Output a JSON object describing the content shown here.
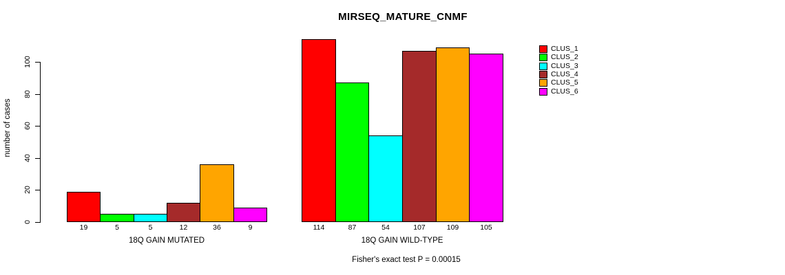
{
  "chart_data": {
    "type": "bar",
    "title": "MIRSEQ_MATURE_CNMF",
    "ylabel": "number of cases",
    "ylim": [
      0,
      100
    ],
    "yticks": [
      0,
      20,
      40,
      60,
      80,
      100
    ],
    "grid": false,
    "legend_position": "right",
    "clusters": [
      {
        "name": "CLUS_1",
        "color": "#FF0000"
      },
      {
        "name": "CLUS_2",
        "color": "#00FF00"
      },
      {
        "name": "CLUS_3",
        "color": "#00FFFF"
      },
      {
        "name": "CLUS_4",
        "color": "#A52A2A"
      },
      {
        "name": "CLUS_5",
        "color": "#FFA500"
      },
      {
        "name": "CLUS_6",
        "color": "#FF00FF"
      }
    ],
    "groups": [
      {
        "label": "18Q GAIN MUTATED",
        "values": [
          19,
          5,
          5,
          12,
          36,
          9
        ]
      },
      {
        "label": "18Q GAIN WILD-TYPE",
        "values": [
          114,
          87,
          54,
          107,
          109,
          105
        ]
      }
    ],
    "footnote": "Fisher's exact test P = 0.00015"
  }
}
